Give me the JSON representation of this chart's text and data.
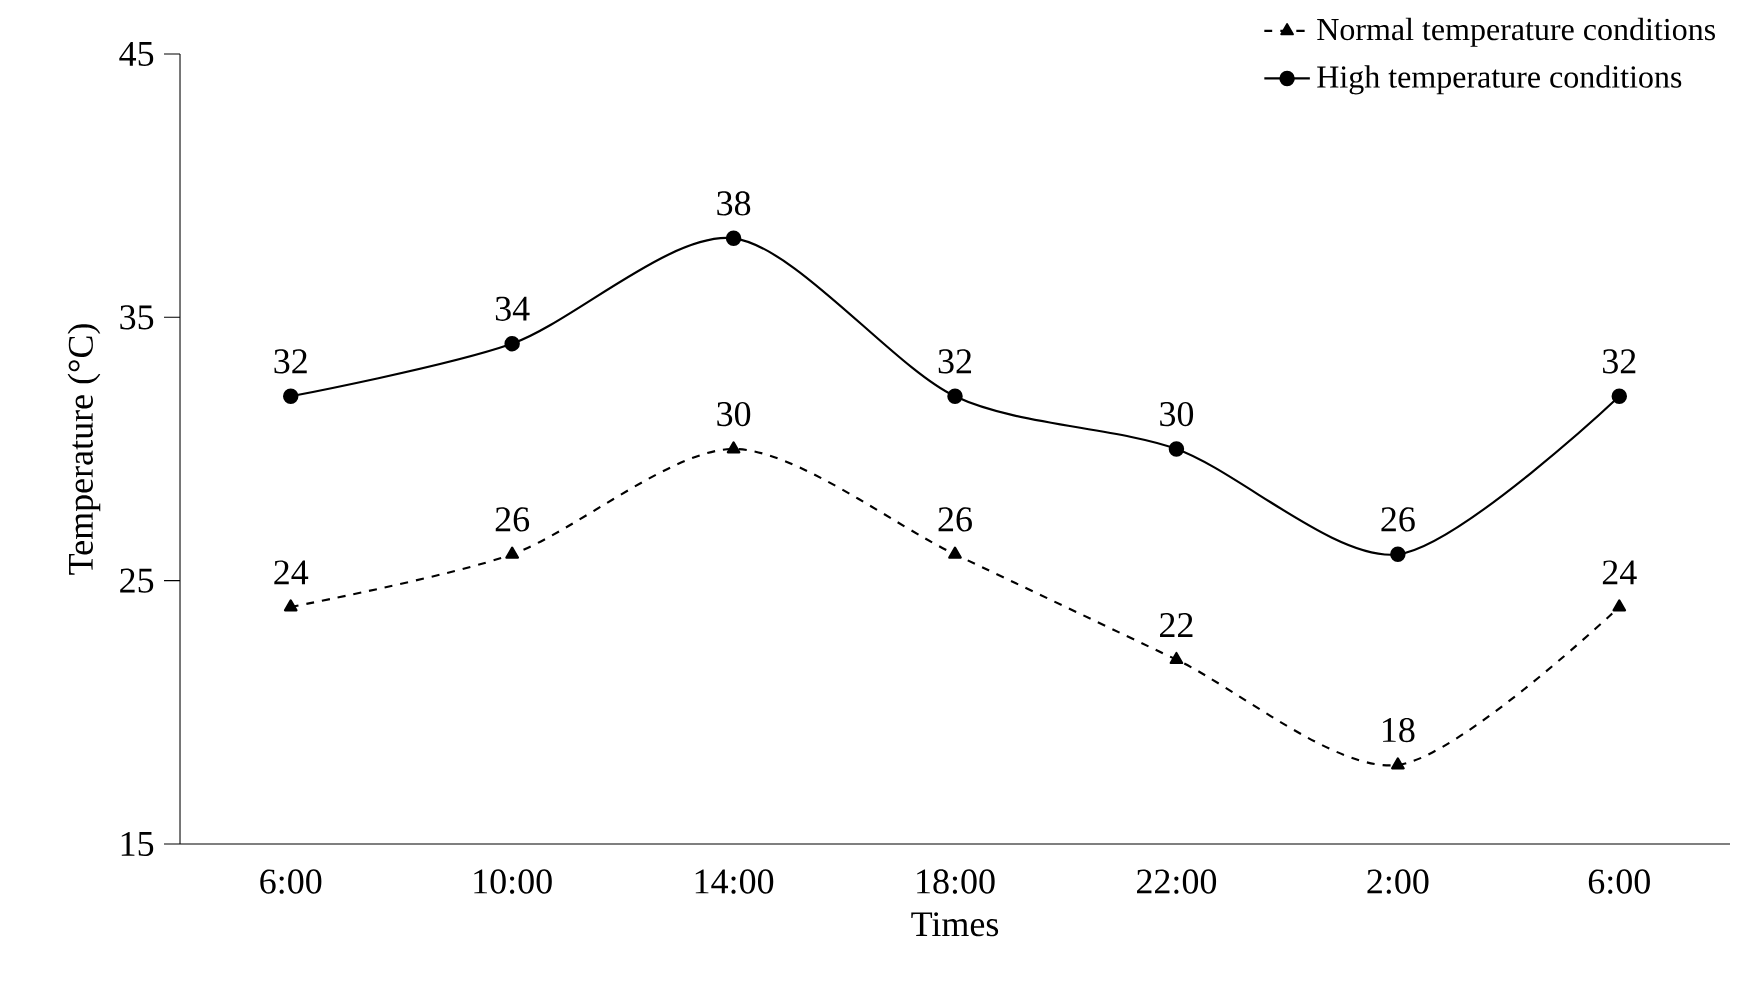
{
  "chart_data": {
    "type": "line",
    "xlabel": "Times",
    "ylabel": "Temperature (°C)",
    "categories": [
      "6:00",
      "10:00",
      "14:00",
      "18:00",
      "22:00",
      "2:00",
      "6:00"
    ],
    "ylim": [
      15,
      45
    ],
    "yticks": [
      15,
      25,
      35,
      45
    ],
    "grid": false,
    "legend": "top right",
    "data_labels": true,
    "series": [
      {
        "name": "Normal temperature conditions",
        "color": "#000000",
        "marker": "triangle",
        "line_style": "dashed",
        "values": [
          24,
          26,
          30,
          26,
          22,
          18,
          24
        ]
      },
      {
        "name": "High temperature conditions",
        "color": "#000000",
        "marker": "circle",
        "line_style": "solid",
        "values": [
          32,
          34,
          38,
          32,
          30,
          26,
          32
        ]
      }
    ]
  }
}
